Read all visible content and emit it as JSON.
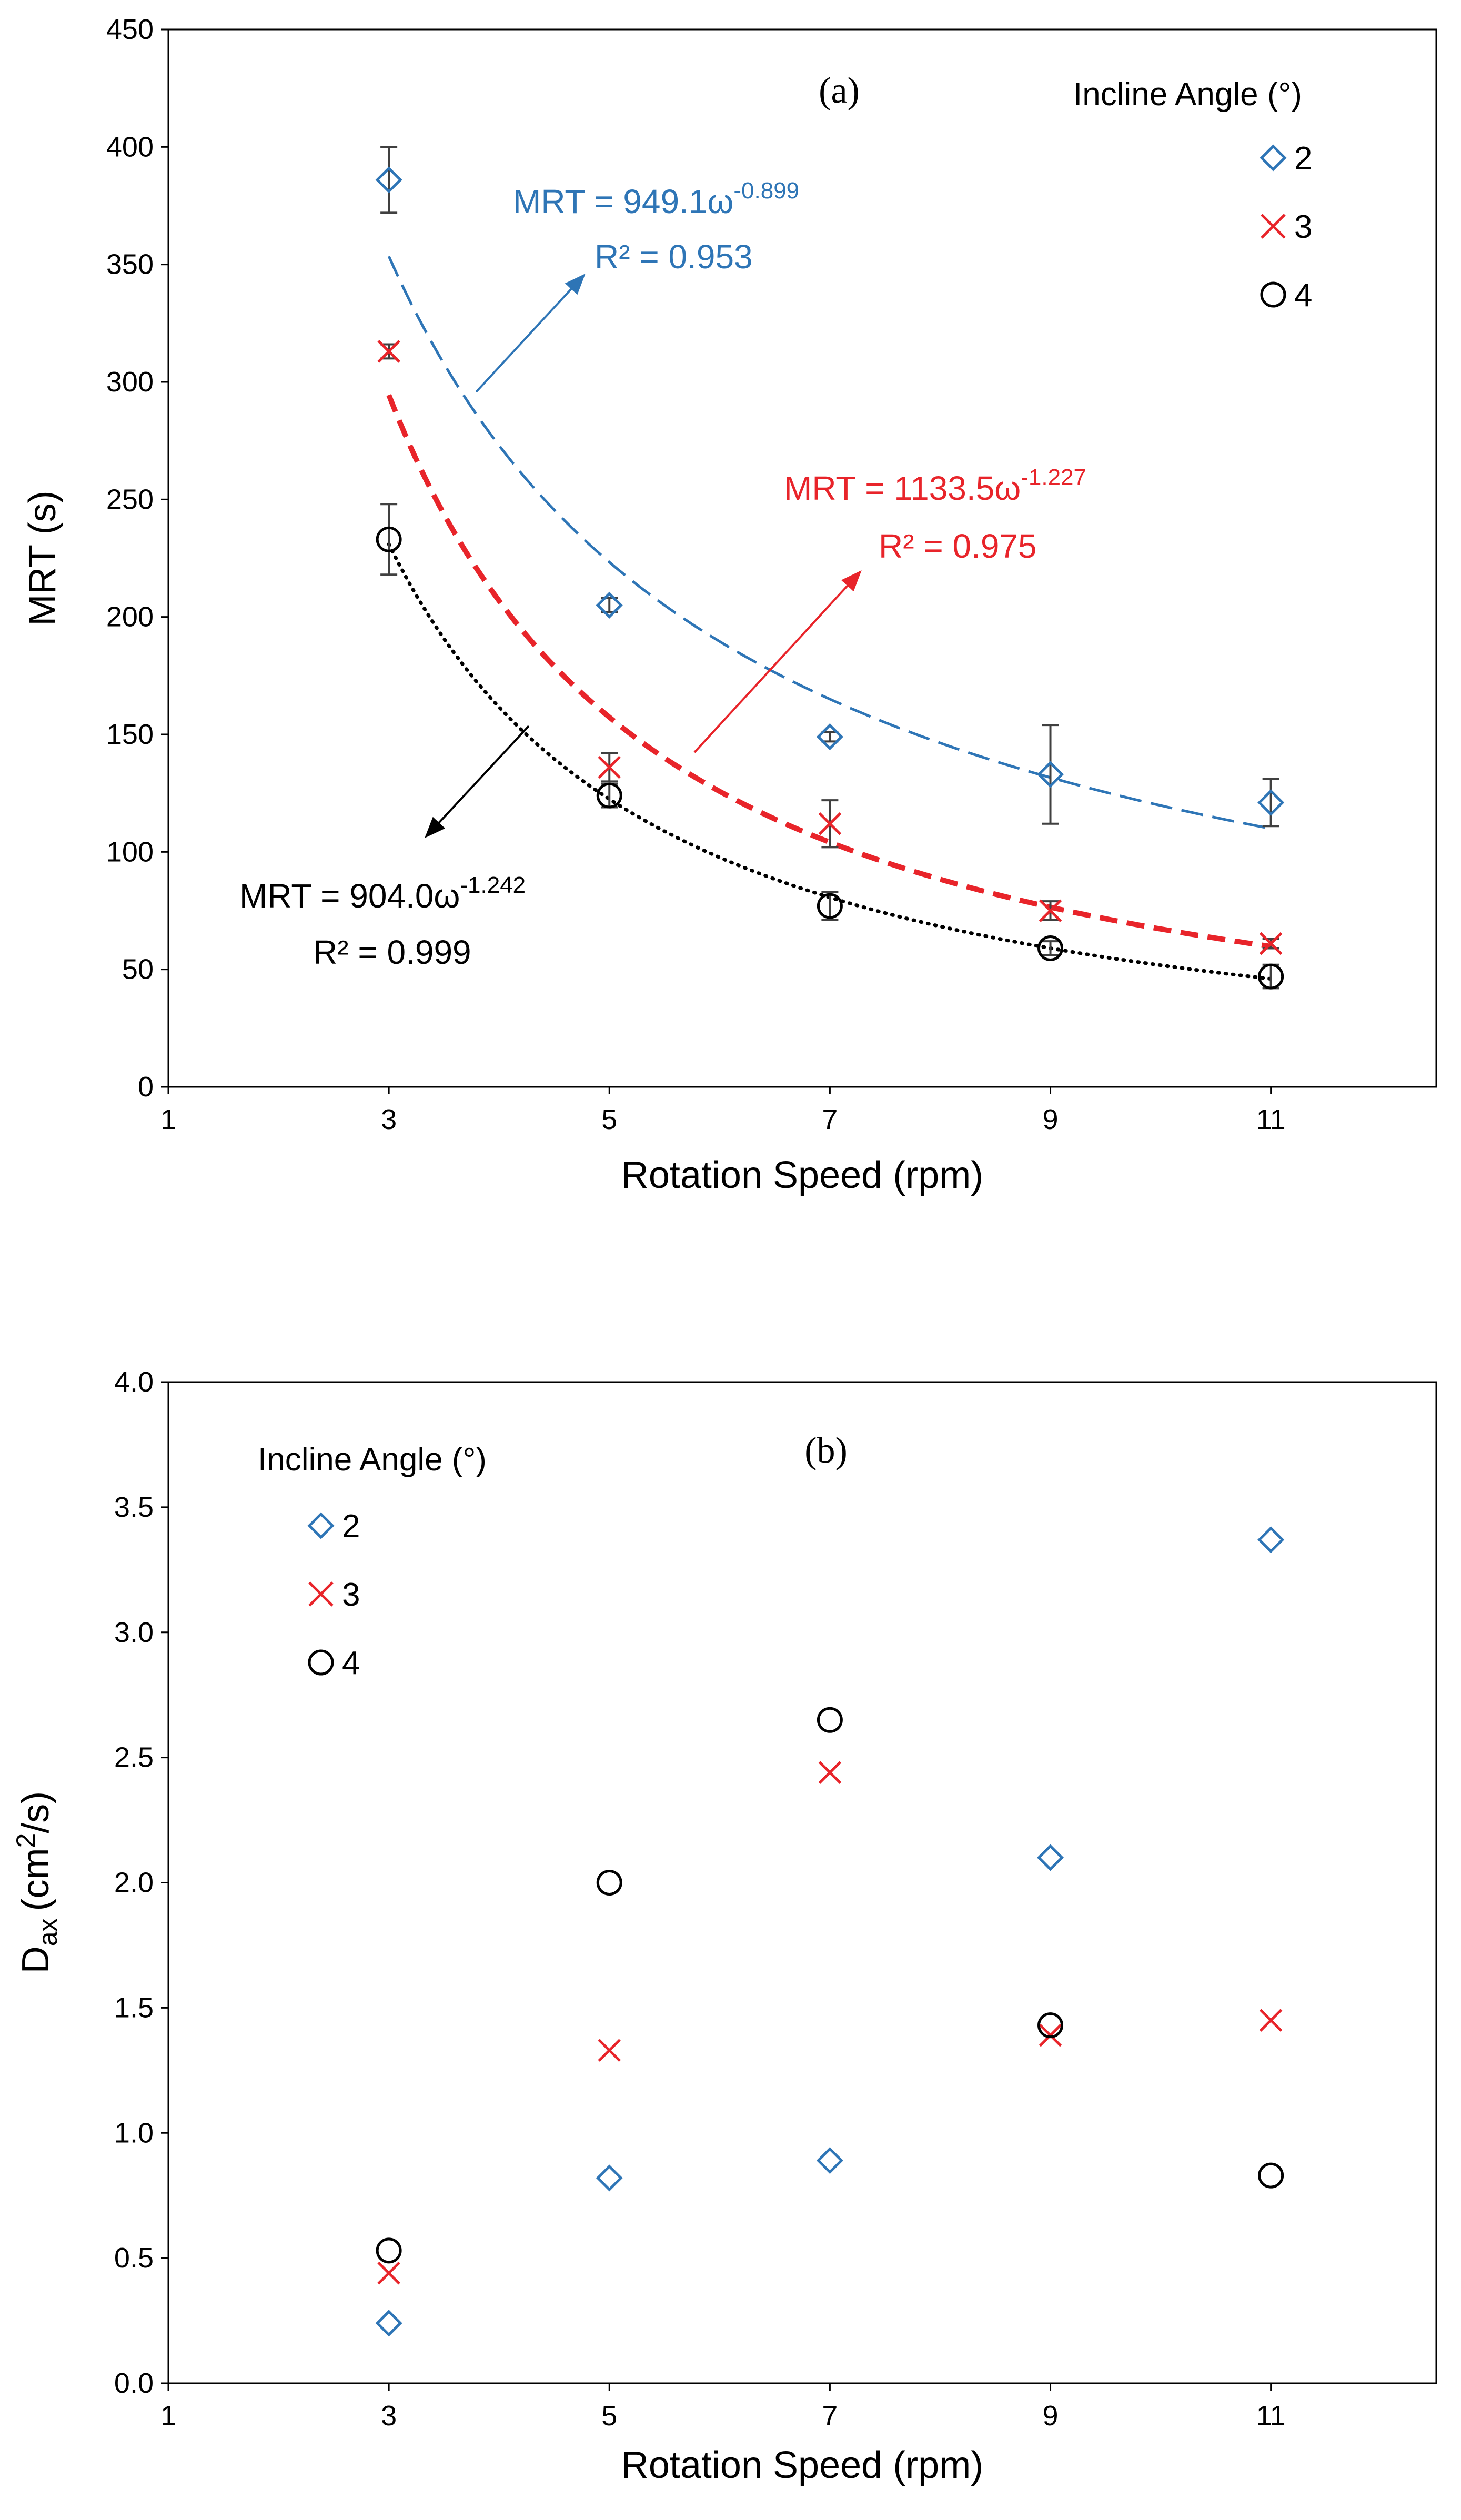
{
  "colors": {
    "s2": "#2E75B6",
    "s3": "#E8242A",
    "s4": "#000000",
    "err": "#404040"
  },
  "chart_data": [
    {
      "type": "scatter",
      "panel_label": "(a)",
      "xlabel": "Rotation Speed (rpm)",
      "ylabel": "MRT (s)",
      "xlim": [
        1,
        12.5
      ],
      "ylim": [
        0,
        450
      ],
      "xticks": [
        "1",
        "3",
        "5",
        "7",
        "9",
        "11"
      ],
      "yticks": [
        "0",
        "50",
        "100",
        "150",
        "200",
        "250",
        "300",
        "350",
        "400",
        "450"
      ],
      "legend_title": "Incline Angle (°)",
      "legend_position": "top-right",
      "series": [
        {
          "name": "2",
          "marker": "diamond",
          "color": "#2E75B6",
          "x": [
            3,
            5,
            7,
            9,
            11
          ],
          "y": [
            386,
            205,
            149,
            133,
            121
          ],
          "err": [
            14,
            3,
            2,
            21,
            10
          ]
        },
        {
          "name": "3",
          "marker": "x",
          "color": "#E8242A",
          "x": [
            3,
            5,
            7,
            9,
            11
          ],
          "y": [
            313,
            136,
            112,
            75,
            61
          ],
          "err": [
            3,
            6,
            10,
            4,
            2
          ]
        },
        {
          "name": "4",
          "marker": "circle",
          "color": "#000000",
          "x": [
            3,
            5,
            7,
            9,
            11
          ],
          "y": [
            233,
            124,
            77,
            59,
            47
          ],
          "err": [
            15,
            5,
            6,
            3,
            5
          ]
        }
      ],
      "fits": [
        {
          "series": "2",
          "style": "long-dash",
          "a": 949.1,
          "b": -0.899,
          "equation": "MRT = 949.1ω",
          "exponent": "-0.899",
          "r2": "R² = 0.953"
        },
        {
          "series": "3",
          "style": "bold-dash",
          "a": 1133.5,
          "b": -1.227,
          "equation": "MRT = 1133.5ω",
          "exponent": "-1.227",
          "r2": "R² = 0.975"
        },
        {
          "series": "4",
          "style": "dotted",
          "a": 904.0,
          "b": -1.242,
          "equation": "MRT = 904.0ω",
          "exponent": "-1.242",
          "r2": "R² = 0.999"
        }
      ]
    },
    {
      "type": "scatter",
      "panel_label": "(b)",
      "xlabel": "Rotation Speed (rpm)",
      "ylabel_main": "D",
      "ylabel_sub": "ax",
      "ylabel_unit": "(cm",
      "ylabel_sup": "2",
      "ylabel_end": "/s)",
      "xlim": [
        1,
        12.5
      ],
      "ylim": [
        0,
        4.0
      ],
      "xticks": [
        "1",
        "3",
        "5",
        "7",
        "9",
        "11"
      ],
      "yticks": [
        "0.0",
        "0.5",
        "1.0",
        "1.5",
        "2.0",
        "2.5",
        "3.0",
        "3.5",
        "4.0"
      ],
      "legend_title": "Incline Angle (°)",
      "legend_position": "top-left",
      "series": [
        {
          "name": "2",
          "marker": "diamond",
          "color": "#2E75B6",
          "x": [
            3,
            5,
            7,
            9,
            11
          ],
          "y": [
            0.24,
            0.82,
            0.89,
            2.1,
            3.37
          ]
        },
        {
          "name": "3",
          "marker": "x",
          "color": "#E8242A",
          "x": [
            3,
            5,
            7,
            9,
            11
          ],
          "y": [
            0.44,
            1.33,
            2.44,
            1.39,
            1.45
          ]
        },
        {
          "name": "4",
          "marker": "circle",
          "color": "#000000",
          "x": [
            3,
            5,
            7,
            9,
            11
          ],
          "y": [
            0.53,
            2.0,
            2.65,
            1.43,
            0.83
          ]
        }
      ]
    }
  ]
}
